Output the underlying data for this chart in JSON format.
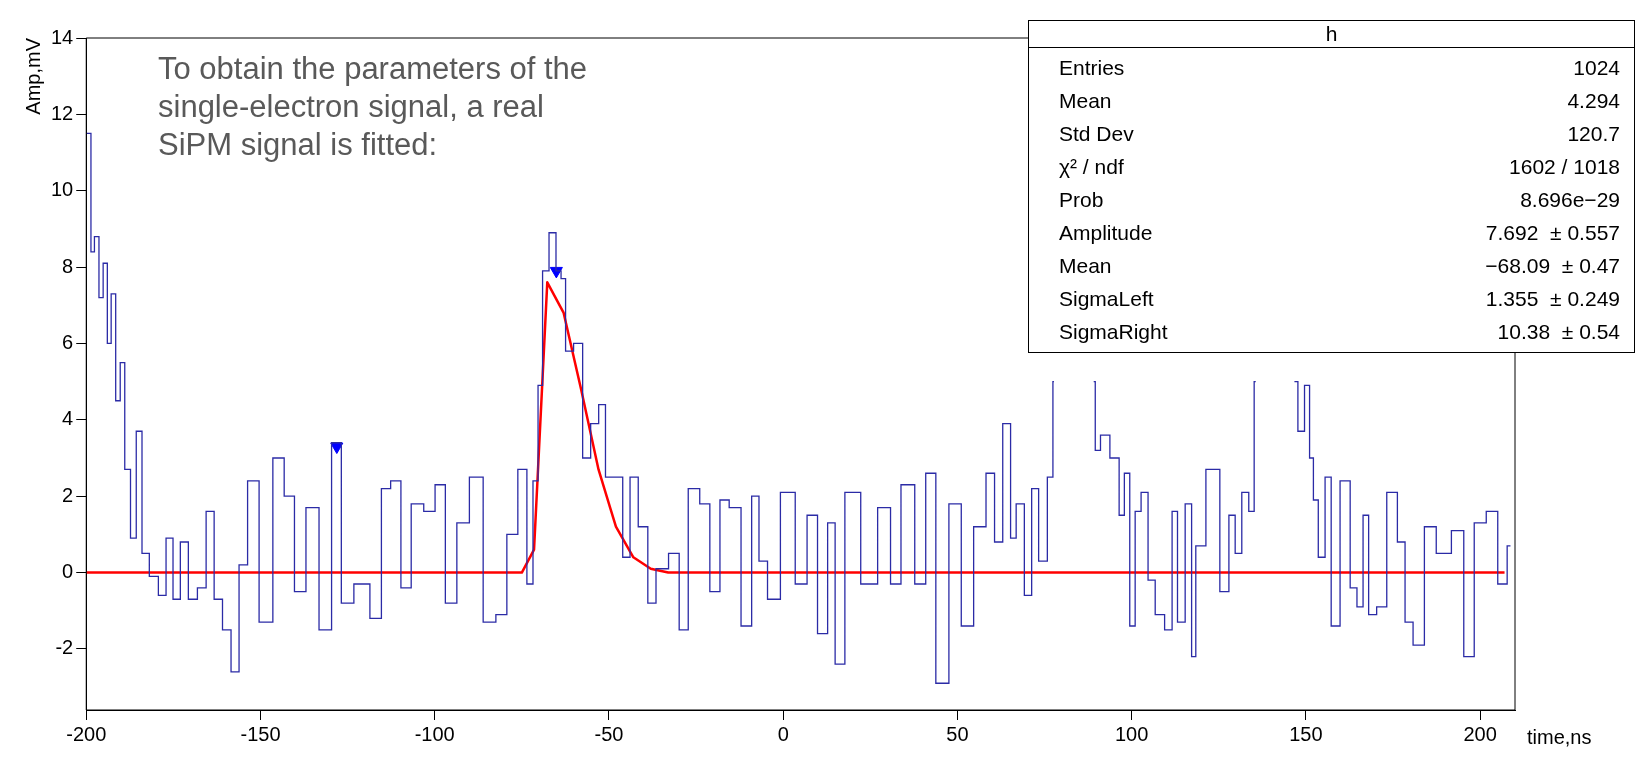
{
  "chart_data": {
    "type": "step",
    "xlabel": "time,ns",
    "ylabel": "Amp,mV",
    "xlim": [
      -200,
      210
    ],
    "ylim": [
      -3.6,
      14
    ],
    "xticks": [
      -200,
      -150,
      -100,
      -50,
      0,
      50,
      100,
      150,
      200
    ],
    "yticks": [
      -2,
      0,
      2,
      4,
      6,
      8,
      10,
      12,
      14
    ],
    "grid": false,
    "legend": false,
    "annotations": [
      "To obtain the parameters of the single-electron signal, a real SiPM signal is fitted:",
      "h",
      "Entries",
      "1024",
      "Mean",
      "4.294",
      "Std Dev",
      "120.7",
      "χ² / ndf",
      "1602 / 1018",
      "Prob",
      "8.696e−29",
      "Amplitude",
      "7.692  ± 0.557",
      "Mean",
      "−68.09  ± 0.47",
      "SigmaLeft",
      "1.355  ± 0.249",
      "SigmaRight",
      "10.38  ± 0.54"
    ],
    "series": [
      {
        "type": "step",
        "color": "#2b2ba6",
        "x": [
          -200,
          -199,
          -198.3,
          -197,
          -195.7,
          -194.6,
          -193.3,
          -192.4,
          -190.7,
          -189.8,
          -188.1,
          -186.5,
          -184.8,
          -183.2,
          -180.6,
          -178,
          -176.2,
          -174,
          -172,
          -169.4,
          -166.8,
          -164.4,
          -162.2,
          -159.6,
          -157.3,
          -155,
          -152.4,
          -148.4,
          -144.5,
          -141.9,
          -138.6,
          -135.3,
          -131.1,
          -128.1,
          -125.5,
          -120.9,
          -116.3,
          -114.3,
          -111,
          -108.4,
          -105.1,
          -101.2,
          -98.6,
          -95.3,
          -92,
          -88.1,
          -84.1,
          -80.8,
          -77.8,
          -74.5,
          -72.6,
          -71,
          -69.7,
          -68.4,
          -66,
          -64.4,
          -63.1,
          -61.8,
          -58.5,
          -56.6,
          -53.9,
          -52,
          -50,
          -47.4,
          -44.7,
          -43.2,
          -40,
          -37.7,
          -35.3,
          -30.5,
          -29.2,
          -25.3,
          -22.6,
          -19.5,
          -16.8,
          -14.2,
          -10,
          -8.1,
          -5.8,
          -3.2,
          1.6,
          5.3,
          8.4,
          11.3,
          14.2,
          15.6,
          19.8,
          24.7,
          29.5,
          32.1,
          35.5,
          40,
          41.8,
          45.8,
          49.3,
          52.9,
          56.4,
          60,
          61.3,
          64.7,
          65.8,
          67.9,
          70.5,
          72.1,
          74.5,
          77.1,
          77.7,
          80,
          89.1,
          90,
          92.1,
          95.4,
          97.4,
          98.4,
          100.5,
          101.5,
          103.9,
          105.5,
          108,
          110.9,
          112.3,
          114,
          116.7,
          117.7,
          119.1,
          123.5,
          127.1,
          128.7,
          130.7,
          132.5,
          134.7,
          135.6,
          140,
          146.7,
          148.7,
          150.5,
          151.6,
          152.7,
          154.4,
          156.6,
          157.9,
          161.7,
          163.7,
          165.6,
          167.2,
          168.8,
          171.8,
          174.6,
          177.9,
          179,
          182.5,
          185.5,
          189.3,
          194.2,
          196.4,
          200.2,
          203.3,
          206.8,
          208.7
        ],
        "values": [
          11.5,
          11.5,
          8.4,
          8.8,
          7.2,
          8.1,
          6.0,
          7.3,
          4.5,
          5.5,
          2.7,
          0.9,
          3.7,
          0.5,
          -0.1,
          -0.6,
          0.9,
          -0.7,
          0.8,
          -0.7,
          -0.4,
          1.6,
          -0.7,
          -1.5,
          -2.6,
          0.2,
          2.4,
          -1.3,
          3.0,
          2.0,
          -0.5,
          1.7,
          -1.5,
          3.4,
          -0.8,
          -0.3,
          -1.2,
          2.2,
          2.4,
          -0.4,
          1.8,
          1.6,
          2.3,
          -0.8,
          1.3,
          2.5,
          -1.3,
          -1.1,
          1.0,
          2.7,
          -0.3,
          2.4,
          4.9,
          7.9,
          8.9,
          7.9,
          7.7,
          5.8,
          6.0,
          3.0,
          3.9,
          4.4,
          2.5,
          2.5,
          0.4,
          2.5,
          1.2,
          -0.8,
          0.1,
          0.5,
          -1.5,
          2.2,
          1.8,
          -0.5,
          1.9,
          1.7,
          -1.4,
          2.0,
          0.3,
          -0.7,
          2.1,
          -0.3,
          1.5,
          -1.6,
          1.3,
          -2.4,
          2.1,
          -0.3,
          1.7,
          -0.3,
          2.3,
          -0.3,
          2.6,
          -2.9,
          1.8,
          -1.4,
          1.2,
          2.6,
          0.8,
          3.9,
          0.9,
          1.8,
          -0.6,
          2.2,
          0.3,
          2.5,
          5.0,
          null,
          5.0,
          3.2,
          3.6,
          3.0,
          1.5,
          2.6,
          -1.4,
          1.6,
          2.1,
          -0.2,
          -1.1,
          -1.5,
          1.6,
          -1.3,
          1.8,
          -2.2,
          0.7,
          2.7,
          -0.5,
          1.5,
          0.5,
          2.1,
          1.6,
          5.0,
          null,
          5.0,
          3.7,
          4.9,
          3.0,
          1.9,
          0.4,
          2.5,
          -1.4,
          2.4,
          -0.4,
          -0.9,
          1.5,
          -1.1,
          -0.9,
          2.1,
          0.8,
          -1.3,
          -1.9,
          1.2,
          0.5,
          1.1,
          -2.2,
          1.3,
          1.6,
          -0.3,
          0.7
        ]
      },
      {
        "type": "line",
        "color": "#ff0000",
        "x": [
          -200,
          -75,
          -71.5,
          -67.7,
          -63,
          -58,
          -53,
          -48,
          -43,
          -38,
          -33,
          207
        ],
        "values": [
          0,
          0,
          0.6,
          7.6,
          6.8,
          4.8,
          2.7,
          1.2,
          0.4,
          0.1,
          0,
          0
        ]
      },
      {
        "type": "scatter",
        "color": "#0000ff",
        "marker": "triangle",
        "x": [
          -128.1,
          -65.1
        ],
        "values": [
          3.3,
          7.9
        ]
      }
    ]
  }
}
